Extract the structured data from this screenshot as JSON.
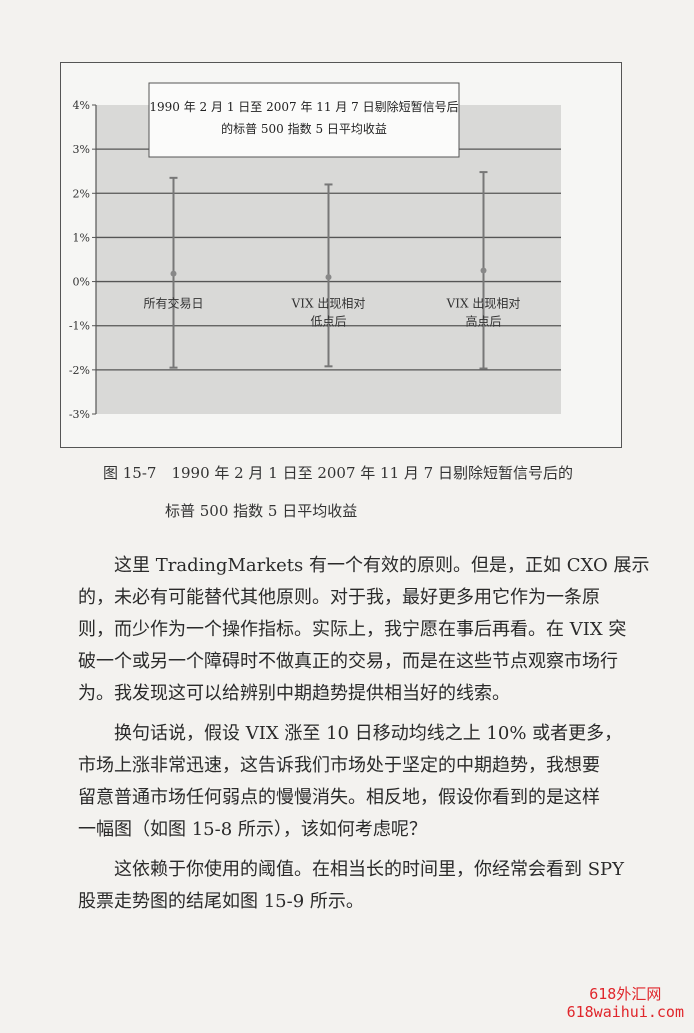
{
  "chart_data": {
    "type": "error-bar",
    "title": "1990 年 2 月 1 日至 2007 年 11 月 7 日剔除短暂信号后的标普 500 指数 5 日平均收益",
    "title_lines": [
      "1990 年 2 月 1 日至 2007 年 11 月 7 日剔除短暂信号后",
      "的标普 500 指数 5 日平均收益"
    ],
    "categories": [
      [
        "所有交易日"
      ],
      [
        "VIX 出现相对",
        "低点后"
      ],
      [
        "VIX 出现相对",
        "高点后"
      ]
    ],
    "mean": [
      0.18,
      0.1,
      0.25
    ],
    "high": [
      2.35,
      2.2,
      2.48
    ],
    "low": [
      -1.95,
      -1.92,
      -1.97
    ],
    "ylim": [
      -3,
      4
    ],
    "yticks": [
      "-3%",
      "-2%",
      "-1%",
      "0%",
      "1%",
      "2%",
      "3%",
      "4%"
    ],
    "grid": true,
    "plot_bg": "#d9d9d7"
  },
  "caption": {
    "line1": "图 15-7　1990 年 2 月 1 日至 2007 年 11 月 7 日剔除短暂信号后的",
    "line2": "标普 500 指数 5 日平均收益"
  },
  "paragraphs": [
    [
      "这里 TradingMarkets 有一个有效的原则。但是，正如 CXO 展示",
      "的，未必有可能替代其他原则。对于我，最好更多用它作为一条原",
      "则，而少作为一个操作指标。实际上，我宁愿在事后再看。在 VIX 突",
      "破一个或另一个障碍时不做真正的交易，而是在这些节点观察市场行",
      "为。我发现这可以给辨别中期趋势提供相当好的线索。"
    ],
    [
      "换句话说，假设 VIX 涨至 10 日移动均线之上 10% 或者更多，",
      "市场上涨非常迅速，这告诉我们市场处于坚定的中期趋势，我想要",
      "留意普通市场任何弱点的慢慢消失。相反地，假设你看到的是这样",
      "一幅图（如图 15-8 所示），该如何考虑呢？"
    ],
    [
      "这依赖于你使用的阈值。在相当长的时间里，你经常会看到 SPY",
      "股票走势图的结尾如图 15-9 所示。"
    ]
  ],
  "watermark": {
    "line1": "618外汇网",
    "line2": "618waihui.com"
  }
}
